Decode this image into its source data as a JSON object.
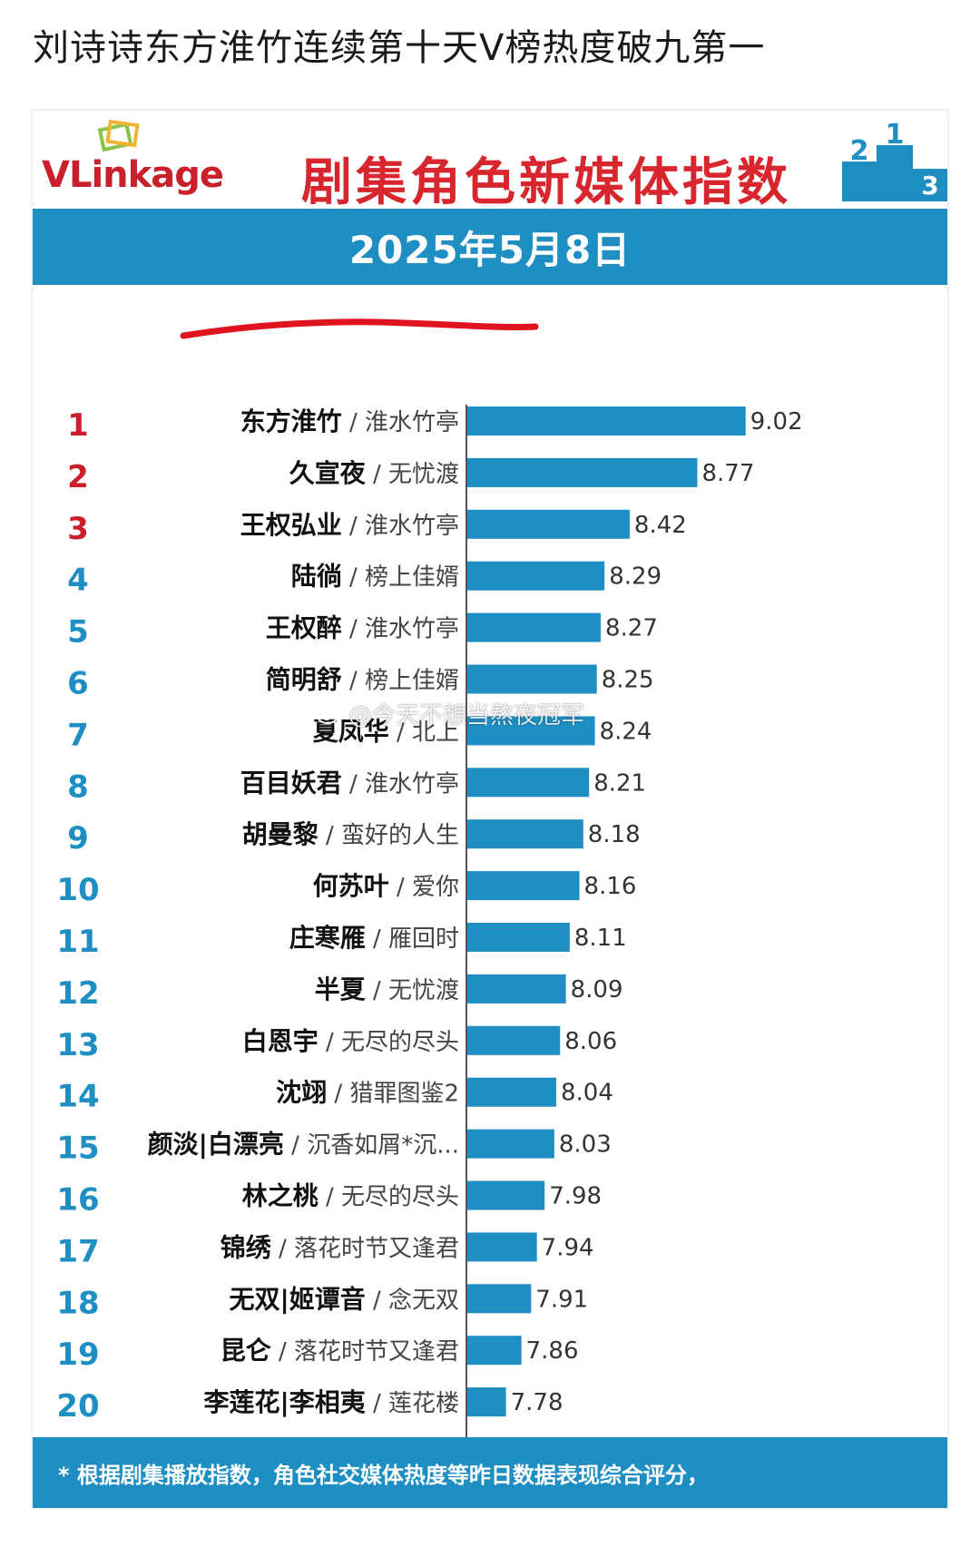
{
  "post": {
    "title": "刘诗诗东方淮竹连续第十天Ⅴ榜热度破九第一"
  },
  "card": {
    "logo_text_a": "VLink",
    "logo_text_b": "age",
    "title": "剧集角色新媒体指数",
    "date": "2025年5月8日",
    "footnote": "* 根据剧集播放指数，角色社交媒体热度等昨日数据表现综合评分，"
  },
  "watermark": {
    "text": "@今天不想当熬夜冠军",
    "icon": "weibo-icon"
  },
  "colors": {
    "accent": "#1f8fc3",
    "bar": "#1f8fc3",
    "rank_top": "#c9202b",
    "rank_rest": "#1f8fc3",
    "title_red": "#d7262e"
  },
  "chart_data": {
    "type": "bar",
    "orientation": "horizontal",
    "ranks": [
      1,
      2,
      3,
      4,
      5,
      6,
      7,
      8,
      9,
      10,
      11,
      12,
      13,
      14,
      15,
      16,
      17,
      18,
      19,
      20
    ],
    "roles": [
      "东方淮竹",
      "久宣夜",
      "王权弘业",
      "陆徜",
      "王权醉",
      "简明舒",
      "夏凤华",
      "百目妖君",
      "胡曼黎",
      "何苏叶",
      "庄寒雁",
      "半夏",
      "白恩宇",
      "沈翊",
      "颜淡|白漂亮",
      "林之桃",
      "锦绣",
      "无双|姬谭音",
      "昆仑",
      "李莲花|李相夷"
    ],
    "dramas": [
      "淮水竹亭",
      "无忧渡",
      "淮水竹亭",
      "榜上佳婿",
      "淮水竹亭",
      "榜上佳婿",
      "北上",
      "淮水竹亭",
      "蛮好的人生",
      "爱你",
      "雁回时",
      "无忧渡",
      "无尽的尽头",
      "猎罪图鉴2",
      "沉香如屑*沉...",
      "无尽的尽头",
      "落花时节又逢君",
      "念无双",
      "落花时节又逢君",
      "莲花楼"
    ],
    "values": [
      9.02,
      8.77,
      8.42,
      8.29,
      8.27,
      8.25,
      8.24,
      8.21,
      8.18,
      8.16,
      8.11,
      8.09,
      8.06,
      8.04,
      8.03,
      7.98,
      7.94,
      7.91,
      7.86,
      7.78
    ],
    "title": "剧集角色新媒体指数",
    "highlight_rank": 1
  }
}
